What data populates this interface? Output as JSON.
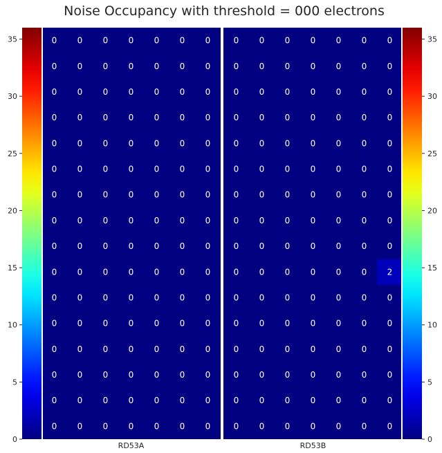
{
  "chart_data": {
    "type": "heatmap",
    "title": "Noise Occupancy with threshold = 000 electrons",
    "panels": [
      {
        "label": "RD53A",
        "columns": 7,
        "rows": 16,
        "values": [
          [
            0,
            0,
            0,
            0,
            0,
            0,
            0
          ],
          [
            0,
            0,
            0,
            0,
            0,
            0,
            0
          ],
          [
            0,
            0,
            0,
            0,
            0,
            0,
            0
          ],
          [
            0,
            0,
            0,
            0,
            0,
            0,
            0
          ],
          [
            0,
            0,
            0,
            0,
            0,
            0,
            0
          ],
          [
            0,
            0,
            0,
            0,
            0,
            0,
            0
          ],
          [
            0,
            0,
            0,
            0,
            0,
            0,
            0
          ],
          [
            0,
            0,
            0,
            0,
            0,
            0,
            0
          ],
          [
            0,
            0,
            0,
            0,
            0,
            0,
            0
          ],
          [
            0,
            0,
            0,
            0,
            0,
            0,
            0
          ],
          [
            0,
            0,
            0,
            0,
            0,
            0,
            0
          ],
          [
            0,
            0,
            0,
            0,
            0,
            0,
            0
          ],
          [
            0,
            0,
            0,
            0,
            0,
            0,
            0
          ],
          [
            0,
            0,
            0,
            0,
            0,
            0,
            0
          ],
          [
            0,
            0,
            0,
            0,
            0,
            0,
            0
          ],
          [
            0,
            0,
            0,
            0,
            0,
            0,
            0
          ]
        ]
      },
      {
        "label": "RD53B",
        "columns": 7,
        "rows": 16,
        "values": [
          [
            0,
            0,
            0,
            0,
            0,
            0,
            0
          ],
          [
            0,
            0,
            0,
            0,
            0,
            0,
            0
          ],
          [
            0,
            0,
            0,
            0,
            0,
            0,
            0
          ],
          [
            0,
            0,
            0,
            0,
            0,
            0,
            0
          ],
          [
            0,
            0,
            0,
            0,
            0,
            0,
            0
          ],
          [
            0,
            0,
            0,
            0,
            0,
            0,
            0
          ],
          [
            0,
            0,
            0,
            0,
            0,
            0,
            0
          ],
          [
            0,
            0,
            0,
            0,
            0,
            0,
            0
          ],
          [
            0,
            0,
            0,
            0,
            0,
            0,
            0
          ],
          [
            0,
            0,
            0,
            0,
            0,
            0,
            2
          ],
          [
            0,
            0,
            0,
            0,
            0,
            0,
            0
          ],
          [
            0,
            0,
            0,
            0,
            0,
            0,
            0
          ],
          [
            0,
            0,
            0,
            0,
            0,
            0,
            0
          ],
          [
            0,
            0,
            0,
            0,
            0,
            0,
            0
          ],
          [
            0,
            0,
            0,
            0,
            0,
            0,
            0
          ],
          [
            0,
            0,
            0,
            0,
            0,
            0,
            0
          ]
        ]
      }
    ],
    "colorbar": {
      "colormap": "jet",
      "range": [
        0,
        36
      ],
      "ticks": [
        "0",
        "5",
        "10",
        "15",
        "20",
        "25",
        "30",
        "35"
      ]
    },
    "grid": false,
    "colors": {
      "zero_cell": "#00007f",
      "separator": "#ffffff",
      "cell_text": "#ffffff"
    }
  }
}
